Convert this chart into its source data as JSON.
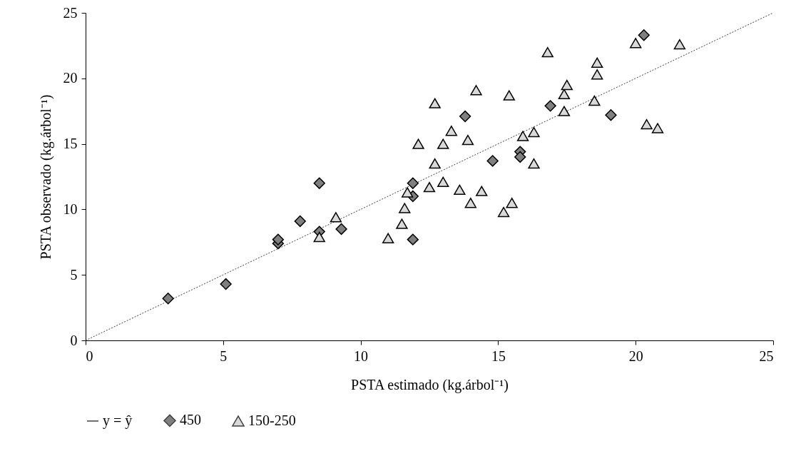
{
  "chart_data": {
    "type": "scatter",
    "xlabel": "PSTA estimado (kg.árbol⁻¹)",
    "ylabel": "PSTA observado (kg.árbol⁻¹)",
    "xlim": [
      0,
      25
    ],
    "ylim": [
      0,
      25
    ],
    "xticks": [
      0,
      5,
      10,
      15,
      20,
      25
    ],
    "yticks": [
      0,
      5,
      10,
      15,
      20,
      25
    ],
    "grid": false,
    "legend": "bottom",
    "series": [
      {
        "name": "y = ŷ",
        "type": "line",
        "line_style": "dotted",
        "marker": "none",
        "color": "#404040",
        "x": [
          0,
          25
        ],
        "values": [
          0,
          25
        ]
      },
      {
        "name": "450",
        "marker": "diamond",
        "color": "#7f7f7f",
        "x": [
          3.0,
          5.1,
          7.0,
          7.0,
          7.8,
          8.5,
          8.5,
          9.3,
          11.9,
          11.9,
          11.9,
          13.8,
          14.8,
          15.8,
          15.8,
          16.9,
          19.1,
          20.3
        ],
        "values": [
          3.2,
          4.3,
          7.4,
          7.7,
          9.1,
          12.0,
          8.3,
          8.5,
          12.0,
          11.0,
          7.7,
          17.1,
          13.7,
          14.4,
          14.0,
          17.9,
          17.2,
          23.3
        ]
      },
      {
        "name": "150-250",
        "marker": "triangle",
        "color": "#d9d9d9",
        "x": [
          8.5,
          9.1,
          11.0,
          11.5,
          11.6,
          11.7,
          12.1,
          12.5,
          12.7,
          12.7,
          13.0,
          13.0,
          13.3,
          13.6,
          13.9,
          14.0,
          14.2,
          14.4,
          15.2,
          15.4,
          15.5,
          15.9,
          16.3,
          16.3,
          16.8,
          17.4,
          17.4,
          17.5,
          18.5,
          18.6,
          18.6,
          20.0,
          20.4,
          20.8,
          21.6
        ],
        "values": [
          7.9,
          9.4,
          7.8,
          8.9,
          10.1,
          11.3,
          15.0,
          11.7,
          13.5,
          18.1,
          15.0,
          12.1,
          16.0,
          11.5,
          15.3,
          10.5,
          19.1,
          11.4,
          9.8,
          18.7,
          10.5,
          15.6,
          15.9,
          13.5,
          22.0,
          17.5,
          18.8,
          19.5,
          18.3,
          20.3,
          21.2,
          22.7,
          16.5,
          16.2,
          22.6
        ]
      }
    ]
  }
}
